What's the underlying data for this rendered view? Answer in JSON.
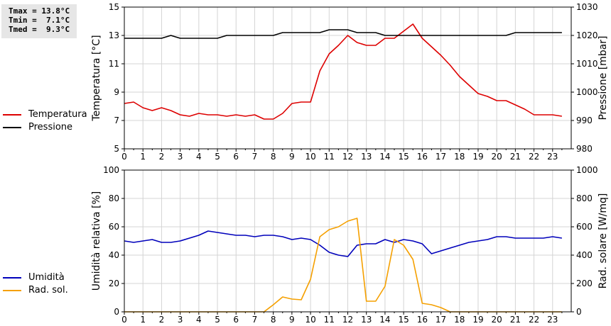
{
  "stats": {
    "tmax": "Tmax = 13.8°C",
    "tmin": "Tmin =  7.1°C",
    "tmed": "Tmed =  9.3°C"
  },
  "colors": {
    "temperatura": "#dd0000",
    "pressione": "#000000",
    "umidita": "#0000bb",
    "radiazione": "#f5a000",
    "grid": "#d4d4d4"
  },
  "chart_data": [
    {
      "type": "line",
      "legend_placement": "left",
      "grid": true,
      "x_ticks": [
        "0",
        "1",
        "2",
        "3",
        "4",
        "5",
        "6",
        "7",
        "8",
        "9",
        "10",
        "11",
        "12",
        "13",
        "14",
        "15",
        "16",
        "17",
        "18",
        "19",
        "20",
        "21",
        "22",
        "23"
      ],
      "xlim": [
        0,
        24
      ],
      "ylabel": "Temperatura [°C]",
      "ylim": [
        5,
        15
      ],
      "y_ticks": [
        "5",
        "7",
        "9",
        "11",
        "13",
        "15"
      ],
      "y2label": "Pressione [mbar]",
      "y2lim": [
        980,
        1030
      ],
      "y2_ticks": [
        "980",
        "990",
        "1000",
        "1010",
        "1020",
        "1030"
      ],
      "series": [
        {
          "name": "Temperatura",
          "axis": "left",
          "x": [
            0,
            0.5,
            1,
            1.5,
            2,
            2.5,
            3,
            3.5,
            4,
            4.5,
            5,
            5.5,
            6,
            6.5,
            7,
            7.5,
            8,
            8.5,
            9,
            9.5,
            10,
            10.5,
            11,
            11.5,
            12,
            12.5,
            13,
            13.5,
            14,
            14.5,
            15,
            15.5,
            16,
            16.5,
            17,
            17.5,
            18,
            18.5,
            19,
            19.5,
            20,
            20.5,
            21,
            21.5,
            22,
            22.5,
            23,
            23.5
          ],
          "values": [
            8.2,
            8.3,
            7.9,
            7.7,
            7.9,
            7.7,
            7.4,
            7.3,
            7.5,
            7.4,
            7.4,
            7.3,
            7.4,
            7.3,
            7.4,
            7.1,
            7.1,
            7.5,
            8.2,
            8.3,
            8.3,
            10.5,
            11.7,
            12.3,
            13.0,
            12.5,
            12.3,
            12.3,
            12.8,
            12.8,
            13.3,
            13.8,
            12.8,
            12.2,
            11.6,
            10.9,
            10.1,
            9.5,
            8.9,
            8.7,
            8.4,
            8.4,
            8.1,
            7.8,
            7.4,
            7.4,
            7.4,
            7.3
          ]
        },
        {
          "name": "Pressione",
          "axis": "right",
          "x": [
            0,
            0.5,
            1,
            1.5,
            2,
            2.5,
            3,
            3.5,
            4,
            4.5,
            5,
            5.5,
            6,
            6.5,
            7,
            7.5,
            8,
            8.5,
            9,
            9.5,
            10,
            10.5,
            11,
            11.5,
            12,
            12.5,
            13,
            13.5,
            14,
            14.5,
            15,
            15.5,
            16,
            16.5,
            17,
            17.5,
            18,
            18.5,
            19,
            19.5,
            20,
            20.5,
            21,
            21.5,
            22,
            22.5,
            23,
            23.5
          ],
          "values": [
            1019,
            1019,
            1019,
            1019,
            1019,
            1020,
            1019,
            1019,
            1019,
            1019,
            1019,
            1020,
            1020,
            1020,
            1020,
            1020,
            1020,
            1021,
            1021,
            1021,
            1021,
            1021,
            1022,
            1022,
            1022,
            1021,
            1021,
            1021,
            1020,
            1020,
            1020,
            1020,
            1020,
            1020,
            1020,
            1020,
            1020,
            1020,
            1020,
            1020,
            1020,
            1020,
            1021,
            1021,
            1021,
            1021,
            1021,
            1021
          ]
        }
      ]
    },
    {
      "type": "line",
      "legend_placement": "left",
      "grid": true,
      "x_ticks": [
        "0",
        "1",
        "2",
        "3",
        "4",
        "5",
        "6",
        "7",
        "8",
        "9",
        "10",
        "11",
        "12",
        "13",
        "14",
        "15",
        "16",
        "17",
        "18",
        "19",
        "20",
        "21",
        "22",
        "23"
      ],
      "xlim": [
        0,
        24
      ],
      "ylabel": "Umidità relativa [%]",
      "ylim": [
        0,
        100
      ],
      "y_ticks": [
        "0",
        "20",
        "40",
        "60",
        "80",
        "100"
      ],
      "y2label": "Rad. solare [W/mq]",
      "y2lim": [
        0,
        1000
      ],
      "y2_ticks": [
        "0",
        "200",
        "400",
        "600",
        "800",
        "1000"
      ],
      "series": [
        {
          "name": "Umidità",
          "axis": "left",
          "x": [
            0,
            0.5,
            1,
            1.5,
            2,
            2.5,
            3,
            3.5,
            4,
            4.5,
            5,
            5.5,
            6,
            6.5,
            7,
            7.5,
            8,
            8.5,
            9,
            9.5,
            10,
            10.5,
            11,
            11.5,
            12,
            12.5,
            13,
            13.5,
            14,
            14.5,
            15,
            15.5,
            16,
            16.5,
            17,
            17.5,
            18,
            18.5,
            19,
            19.5,
            20,
            20.5,
            21,
            21.5,
            22,
            22.5,
            23,
            23.5
          ],
          "values": [
            50,
            49,
            50,
            51,
            49,
            49,
            50,
            52,
            54,
            57,
            56,
            55,
            54,
            54,
            53,
            54,
            54,
            53,
            51,
            52,
            51,
            47,
            42,
            40,
            39,
            47,
            48,
            48,
            51,
            49,
            51,
            50,
            48,
            41,
            43,
            45,
            47,
            49,
            50,
            51,
            53,
            53,
            52,
            52,
            52,
            52,
            53,
            52
          ]
        },
        {
          "name": "Rad. sol.",
          "axis": "right",
          "x": [
            0,
            0.5,
            1,
            1.5,
            2,
            2.5,
            3,
            3.5,
            4,
            4.5,
            5,
            5.5,
            6,
            6.5,
            7,
            7.5,
            8,
            8.5,
            9,
            9.5,
            10,
            10.5,
            11,
            11.5,
            12,
            12.5,
            13,
            13.5,
            14,
            14.5,
            15,
            15.5,
            16,
            16.5,
            17,
            17.5,
            18,
            18.5,
            19,
            19.5,
            20,
            20.5,
            21,
            21.5,
            22,
            22.5,
            23,
            23.5
          ],
          "values": [
            0,
            0,
            0,
            0,
            0,
            0,
            0,
            0,
            0,
            0,
            0,
            0,
            0,
            0,
            0,
            0,
            50,
            105,
            90,
            85,
            230,
            530,
            580,
            600,
            640,
            660,
            75,
            75,
            180,
            510,
            470,
            370,
            60,
            50,
            30,
            0,
            0,
            0,
            0,
            0,
            0,
            0,
            0,
            0,
            0,
            0,
            0,
            0
          ]
        }
      ]
    }
  ]
}
